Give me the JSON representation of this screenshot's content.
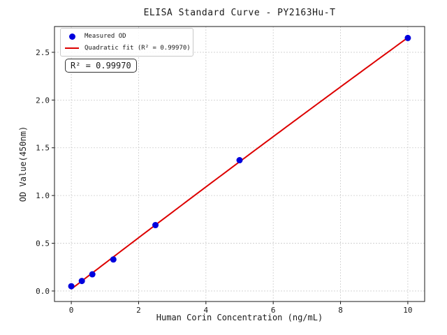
{
  "chart_data": {
    "type": "scatter",
    "title": "ELISA Standard Curve - PY2163Hu-T",
    "xlabel": "Human Corin Concentration (ng/mL)",
    "ylabel": "OD Value(450nm)",
    "xlim": [
      -0.5,
      10.5
    ],
    "ylim": [
      -0.11,
      2.77
    ],
    "xtick_values": [
      0,
      2,
      4,
      6,
      8,
      10
    ],
    "xtick_labels": [
      "0",
      "2",
      "4",
      "6",
      "8",
      "10"
    ],
    "ytick_values": [
      0.0,
      0.5,
      1.0,
      1.5,
      2.0,
      2.5
    ],
    "ytick_labels": [
      "0.0",
      "0.5",
      "1.0",
      "1.5",
      "2.0",
      "2.5"
    ],
    "grid": true,
    "grid_color": "#cccccc",
    "axis_color": "#1a1a1a",
    "legend_position": "upper left",
    "series": [
      {
        "name": "Measured OD",
        "type": "scatter",
        "marker": "circle",
        "color": "#0000dd",
        "x": [
          0,
          0.313,
          0.625,
          1.25,
          2.5,
          5,
          10
        ],
        "y": [
          0.05,
          0.105,
          0.175,
          0.33,
          0.69,
          1.37,
          2.65
        ]
      },
      {
        "name": "Quadratic fit (R² = 0.99970)",
        "type": "line",
        "fit": "quadratic",
        "color": "#dd0000",
        "r_squared": "0.99970"
      }
    ],
    "annotation": {
      "text": "R² = 0.99970"
    }
  }
}
